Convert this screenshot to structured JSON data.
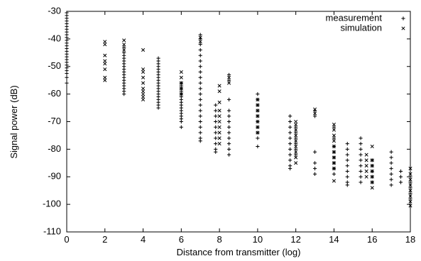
{
  "chart_data": {
    "type": "scatter",
    "xlabel": "Distance from transmitter (log)",
    "ylabel": "Signal power (dB)",
    "xlim": [
      0,
      18
    ],
    "ylim": [
      -110,
      -30
    ],
    "xticks": [
      0,
      2,
      4,
      6,
      8,
      10,
      12,
      14,
      16,
      18
    ],
    "yticks": [
      -110,
      -100,
      -90,
      -80,
      -70,
      -60,
      -50,
      -40,
      -30
    ],
    "grid": false,
    "legend_position": "top-right",
    "series": [
      {
        "name": "measurement",
        "marker": "+",
        "columns": [
          {
            "x": 0.0,
            "y": [
              -30.5,
              -31.5,
              -32.5,
              -33.5,
              -34.5,
              -35.5,
              -36.5,
              -37.5,
              -38.5,
              -39.5,
              -40.5,
              -41.5,
              -42.5,
              -43.5,
              -44.5,
              -45.5,
              -46.5,
              -47.5,
              -48.5,
              -49.5,
              -50.5,
              -51.5,
              -52.5,
              -54,
              -56
            ]
          },
          {
            "x": 3.0,
            "y": [
              -43,
              -45,
              -46,
              -47,
              -48,
              -49,
              -50,
              -51,
              -52,
              -53,
              -54,
              -55,
              -56,
              -57,
              -58,
              -59,
              -60
            ]
          },
          {
            "x": 4.8,
            "y": [
              -47,
              -48,
              -49,
              -50,
              -51,
              -52,
              -53,
              -54,
              -55,
              -56,
              -57,
              -58,
              -59,
              -60,
              -61,
              -62,
              -63,
              -64,
              -65
            ]
          },
          {
            "x": 6.0,
            "y": [
              -56,
              -57,
              -58,
              -59,
              -60,
              -61,
              -62,
              -63,
              -64,
              -65,
              -66,
              -67,
              -68,
              -69,
              -70,
              -72
            ]
          },
          {
            "x": 7.0,
            "y": [
              -38.5,
              -40,
              -42,
              -44,
              -46,
              -48,
              -50,
              -52,
              -54,
              -56,
              -58,
              -60,
              -62,
              -64,
              -66,
              -68,
              -70,
              -72,
              -74,
              -76,
              -77
            ]
          },
          {
            "x": 7.8,
            "y": [
              -64,
              -66,
              -68,
              -70,
              -72,
              -74,
              -76,
              -78,
              -80,
              -81
            ]
          },
          {
            "x": 8.5,
            "y": [
              -53,
              -55,
              -62,
              -66,
              -68,
              -70,
              -72,
              -74,
              -76,
              -78,
              -80,
              -82
            ]
          },
          {
            "x": 10.0,
            "y": [
              -60,
              -62,
              -64,
              -66,
              -68,
              -70,
              -72,
              -74,
              -76,
              -79
            ]
          },
          {
            "x": 11.7,
            "y": [
              -68,
              -70,
              -72,
              -74,
              -76,
              -78,
              -80,
              -82,
              -84,
              -86,
              -87
            ]
          },
          {
            "x": 12.0,
            "y": [
              -72,
              -74,
              -76,
              -78,
              -80,
              -82
            ]
          },
          {
            "x": 13.0,
            "y": [
              -66,
              -68,
              -81,
              -85,
              -87,
              -89
            ]
          },
          {
            "x": 14.0,
            "y": [
              -72,
              -76,
              -79,
              -81,
              -83,
              -85,
              -87,
              -89
            ]
          },
          {
            "x": 14.7,
            "y": [
              -78,
              -80,
              -82,
              -84,
              -86,
              -88,
              -90,
              -92,
              -93
            ]
          },
          {
            "x": 15.4,
            "y": [
              -76,
              -78,
              -80,
              -82,
              -84,
              -86,
              -88,
              -90,
              -92
            ]
          },
          {
            "x": 16.0,
            "y": [
              -84,
              -86,
              -88,
              -90,
              -92
            ]
          },
          {
            "x": 17.0,
            "y": [
              -81,
              -83,
              -85,
              -87,
              -89,
              -91,
              -93
            ]
          },
          {
            "x": 17.5,
            "y": [
              -88,
              -90,
              -92
            ]
          },
          {
            "x": 18.0,
            "y": [
              -90,
              -92,
              -94,
              -96,
              -98
            ]
          }
        ]
      },
      {
        "name": "simulation",
        "marker": "x",
        "columns": [
          {
            "x": 2.0,
            "y": [
              -41,
              -42,
              -46,
              -48,
              -49,
              -51,
              -54,
              -55
            ]
          },
          {
            "x": 3.0,
            "y": [
              -40.5,
              -42,
              -44
            ]
          },
          {
            "x": 4.0,
            "y": [
              -44,
              -51,
              -52,
              -54,
              -56,
              -58,
              -59,
              -60,
              -61,
              -62
            ]
          },
          {
            "x": 6.0,
            "y": [
              -52,
              -54,
              -56,
              -58,
              -60
            ]
          },
          {
            "x": 7.0,
            "y": [
              -39.5,
              -41
            ]
          },
          {
            "x": 8.0,
            "y": [
              -57,
              -59,
              -63,
              -66,
              -68,
              -70,
              -72,
              -74,
              -76,
              -78
            ]
          },
          {
            "x": 8.5,
            "y": [
              -54,
              -56
            ]
          },
          {
            "x": 10.0,
            "y": [
              -62,
              -64,
              -66,
              -68,
              -70,
              -72,
              -74
            ]
          },
          {
            "x": 12.0,
            "y": [
              -70,
              -71,
              -73,
              -75,
              -77,
              -79,
              -81,
              -83,
              -85
            ]
          },
          {
            "x": 13.0,
            "y": [
              -65.5,
              -67
            ]
          },
          {
            "x": 14.0,
            "y": [
              -71,
              -73,
              -75,
              -77,
              -79,
              -81,
              -83,
              -85,
              -87,
              -91.5
            ]
          },
          {
            "x": 15.7,
            "y": [
              -82,
              -84,
              -86,
              -88,
              -90
            ]
          },
          {
            "x": 16.0,
            "y": [
              -79,
              -84,
              -86,
              -88,
              -90,
              -92,
              -94
            ]
          },
          {
            "x": 18.0,
            "y": [
              -87,
              -89,
              -91,
              -93,
              -95,
              -97,
              -99,
              -100.5
            ]
          }
        ]
      }
    ]
  }
}
